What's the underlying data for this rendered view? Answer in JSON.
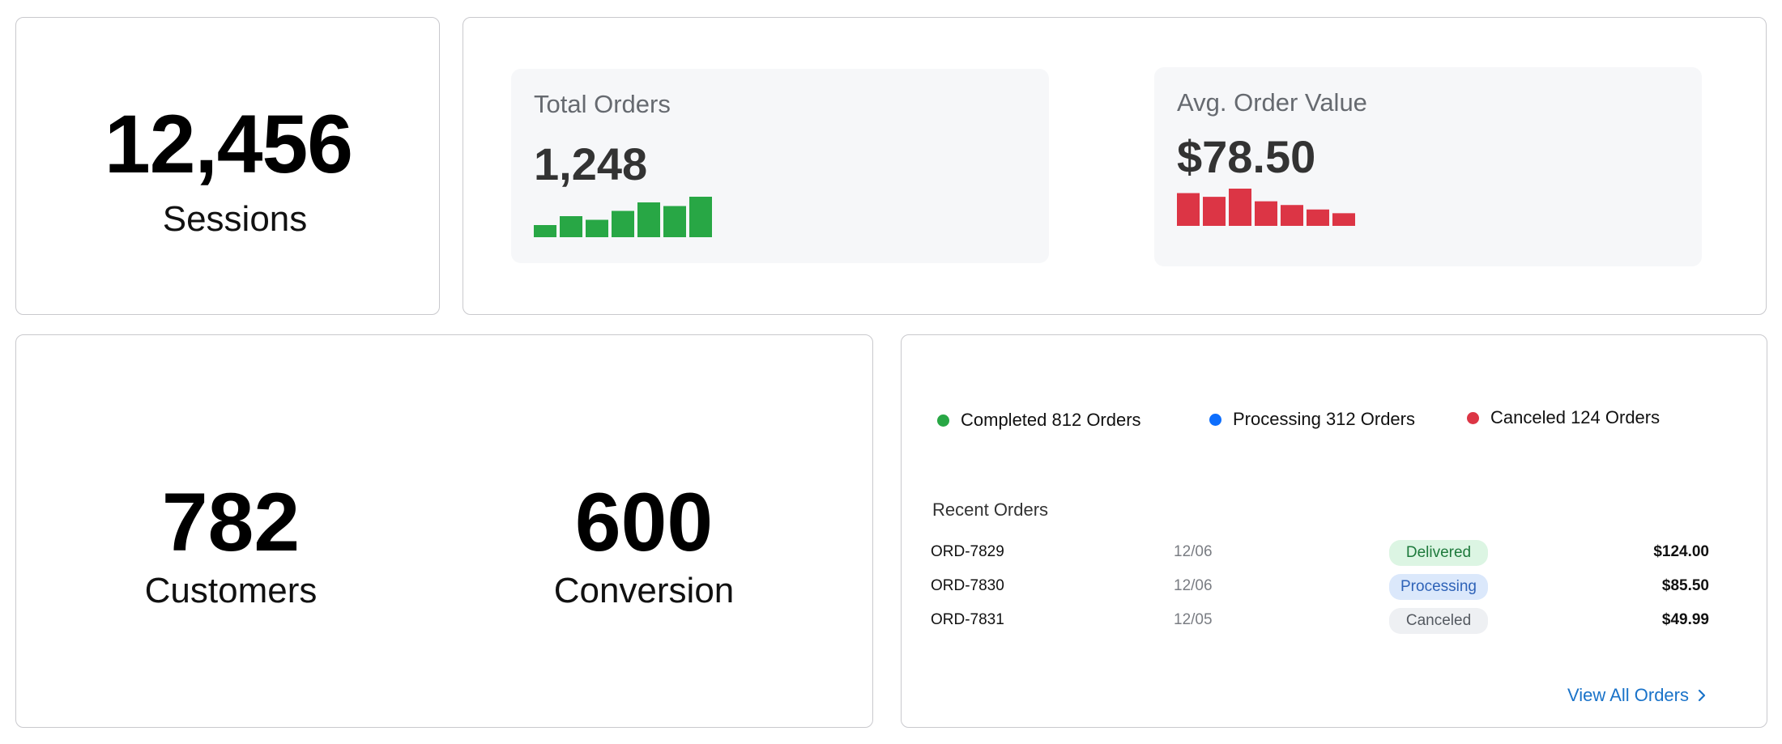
{
  "sessions": {
    "value": "12,456",
    "label": "Sessions"
  },
  "orders": {
    "total": {
      "title": "Total Orders",
      "value": "1,248",
      "trend": [
        0.3,
        0.52,
        0.43,
        0.65,
        0.86,
        0.77,
        1.0
      ],
      "color": "#28a745"
    },
    "aov": {
      "title": "Avg. Order Value",
      "value": "$78.50",
      "trend": [
        0.88,
        0.78,
        1.0,
        0.66,
        0.56,
        0.44,
        0.34
      ],
      "color": "#dc3545"
    }
  },
  "customers": {
    "value": "782",
    "label": "Customers"
  },
  "conversion": {
    "value": "600",
    "label": "Conversion"
  },
  "legend": [
    {
      "label": "Completed 812 Orders",
      "color": "#28a745"
    },
    {
      "label": "Processing 312 Orders",
      "color": "#0d6efd"
    },
    {
      "label": "Canceled 124 Orders",
      "color": "#dc3545"
    }
  ],
  "recent": {
    "title": "Recent Orders",
    "rows": [
      {
        "id": "ORD-7829",
        "date": "12/06",
        "status": "Delivered",
        "amount": "$124.00",
        "status_bg": "#dcf5e3",
        "status_fg": "#1e7a3c"
      },
      {
        "id": "ORD-7830",
        "date": "12/06",
        "status": "Processing",
        "amount": "$85.50",
        "status_bg": "#dbe8fb",
        "status_fg": "#2f63b8"
      },
      {
        "id": "ORD-7831",
        "date": "12/05",
        "status": "Canceled",
        "amount": "$49.99",
        "status_bg": "#eef0f3",
        "status_fg": "#555a61"
      }
    ],
    "view_all": "View All Orders",
    "link_color": "#1a73c9"
  }
}
